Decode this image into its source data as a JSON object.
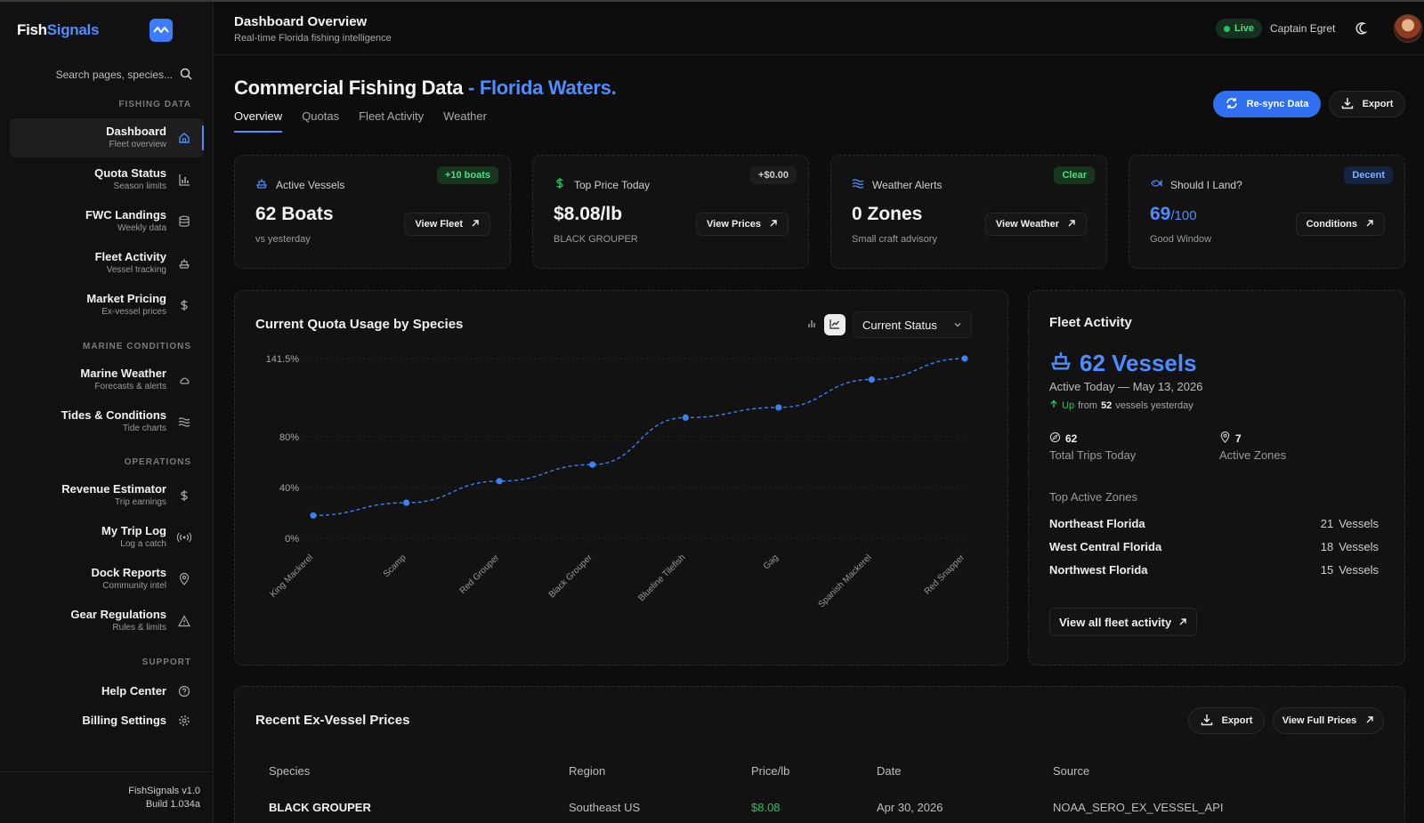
{
  "brand": {
    "part1": "Fish",
    "part2": "Signals"
  },
  "sidebar": {
    "search_placeholder": "Search pages, species...",
    "sections": {
      "fishing": "FISHING DATA",
      "marine": "MARINE CONDITIONS",
      "operations": "OPERATIONS",
      "support": "SUPPORT"
    },
    "items": [
      {
        "label": "Dashboard",
        "sub": "Fleet overview"
      },
      {
        "label": "Quota Status",
        "sub": "Season limits"
      },
      {
        "label": "FWC Landings",
        "sub": "Weekly data"
      },
      {
        "label": "Fleet Activity",
        "sub": "Vessel tracking"
      },
      {
        "label": "Market Pricing",
        "sub": "Ex-vessel prices"
      },
      {
        "label": "Marine Weather",
        "sub": "Forecasts & alerts"
      },
      {
        "label": "Tides & Conditions",
        "sub": "Tide charts"
      },
      {
        "label": "Revenue Estimator",
        "sub": "Trip earnings"
      },
      {
        "label": "My Trip Log",
        "sub": "Log a catch"
      },
      {
        "label": "Dock Reports",
        "sub": "Community intel"
      },
      {
        "label": "Gear Regulations",
        "sub": "Rules & limits"
      },
      {
        "label": "Help Center"
      },
      {
        "label": "Billing Settings"
      }
    ],
    "footer": {
      "version": "FishSignals v1.0",
      "build": "Build 1.034a"
    }
  },
  "header": {
    "title": "Dashboard Overview",
    "subtitle": "Real-time Florida fishing intelligence",
    "live": "Live",
    "user": "Captain Egret"
  },
  "page": {
    "title": "Commercial Fishing Data",
    "title_accent": "- Florida Waters.",
    "tabs": [
      "Overview",
      "Quotas",
      "Fleet Activity",
      "Weather"
    ],
    "resync_label": "Re-sync Data",
    "export_label": "Export"
  },
  "stats": [
    {
      "label": "Active Vessels",
      "badge": "+10 boats",
      "value": "62 Boats",
      "sub": "vs yesterday",
      "button": "View Fleet"
    },
    {
      "label": "Top Price Today",
      "badge": "+$0.00",
      "value": "$8.08/lb",
      "sub": "BLACK GROUPER",
      "button": "View Prices"
    },
    {
      "label": "Weather Alerts",
      "badge": "Clear",
      "value": "0 Zones",
      "sub": "Small craft advisory",
      "button": "View Weather"
    },
    {
      "label": "Should I Land?",
      "badge": "Decent",
      "value": "69",
      "value_suffix": "/100",
      "sub": "Good Window",
      "button": "Conditions"
    }
  ],
  "chart_card": {
    "title": "Current Quota Usage by Species",
    "select": "Current Status"
  },
  "chart_data": {
    "type": "line",
    "title": "Current Quota Usage by Species",
    "categories": [
      "King Mackerel",
      "Scamp",
      "Red Grouper",
      "Black Grouper",
      "Blueline Tilefish",
      "Gag",
      "Spanish Mackerel",
      "Red Snapper"
    ],
    "values": [
      18,
      28,
      45,
      58,
      95,
      103,
      125,
      141.5
    ],
    "y_ticks": [
      "0%",
      "40%",
      "80%",
      "141.5%"
    ],
    "y_tick_values": [
      0,
      40,
      80,
      141.5
    ],
    "ylim": [
      0,
      141.5
    ],
    "grid": true,
    "line_style": "dashed"
  },
  "fleet": {
    "title": "Fleet Activity",
    "big": "62 Vessels",
    "date": "Active Today — May 13, 2026",
    "trend_up": "Up",
    "trend_from": "from",
    "trend_num": "52",
    "trend_tail": "vessels yesterday",
    "trips_value": "62",
    "trips_label": "Total Trips Today",
    "zones_value": "7",
    "zones_label": "Active Zones",
    "zones_heading": "Top Active Zones",
    "zones": [
      {
        "name": "Northeast Florida",
        "count": "21",
        "unit": "Vessels"
      },
      {
        "name": "West Central Florida",
        "count": "18",
        "unit": "Vessels"
      },
      {
        "name": "Northwest Florida",
        "count": "15",
        "unit": "Vessels"
      }
    ],
    "link": "View all fleet activity"
  },
  "prices": {
    "title": "Recent Ex-Vessel Prices",
    "export": "Export",
    "view_full": "View Full Prices",
    "columns": [
      "Species",
      "Region",
      "Price/lb",
      "Date",
      "Source"
    ],
    "rows": [
      {
        "species": "BLACK GROUPER",
        "region": "Southeast US",
        "price": "$8.08",
        "date": "Apr 30, 2026",
        "source": "NOAA_SERO_EX_VESSEL_API"
      }
    ]
  },
  "colors": {
    "accent": "#4f8dff",
    "primary_button": "#2f6ff0",
    "up": "#22c55e",
    "background": "#0d0d0d"
  }
}
